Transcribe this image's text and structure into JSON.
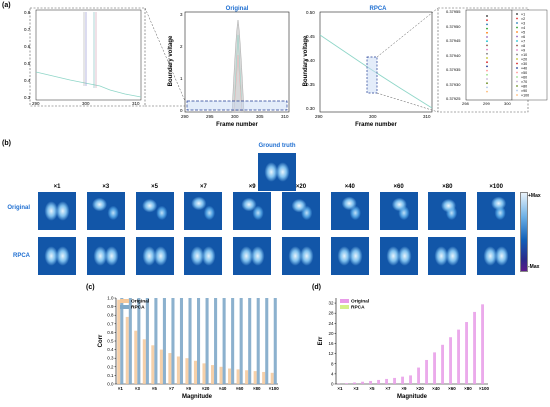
{
  "panels": {
    "a": {
      "label": "(a)"
    },
    "b": {
      "label": "(b)"
    },
    "c": {
      "label": "(c)"
    },
    "d": {
      "label": "(d)"
    }
  },
  "panel_a": {
    "inset_left": {
      "x_ticks": [
        "290",
        "300",
        "310"
      ],
      "y_ticks": [
        "0.8",
        "0.7",
        "0.6",
        "0.5",
        "0.4",
        "0.3"
      ]
    },
    "original": {
      "title": "Original",
      "xlabel": "Frame number",
      "ylabel": "Boundary voltage",
      "x_ticks": [
        "290",
        "295",
        "300",
        "305",
        "310"
      ],
      "y_ticks": [
        "0",
        "1",
        "2",
        "3"
      ]
    },
    "rpca": {
      "title": "RPCA",
      "xlabel": "Frame number",
      "ylabel": "Boundary voltage",
      "x_ticks": [
        "290",
        "300",
        "310"
      ],
      "y_ticks": [
        "0.50",
        "0.45",
        "0.40",
        "0.35",
        "0.30"
      ]
    },
    "zoom": {
      "x_ticks": [
        "298",
        "299",
        "300"
      ],
      "y_ticks": [
        "0.37955",
        "0.37950",
        "0.37945",
        "0.37940",
        "0.37935",
        "0.37930",
        "0.37925"
      ],
      "legend": [
        "×1",
        "×2",
        "×3",
        "×4",
        "×5",
        "×6",
        "×7",
        "×8",
        "×9",
        "×10",
        "×20",
        "×30",
        "×40",
        "×50",
        "×60",
        "×70",
        "×80",
        "×90",
        "×100"
      ],
      "legend_colors": [
        "#222222",
        "#e03030",
        "#1f77b4",
        "#2ca02c",
        "#ff7f0e",
        "#9467bd",
        "#17becf",
        "#8c564b",
        "#e377c2",
        "#7f7f7f",
        "#bcbd22",
        "#d62728",
        "#1f3a93",
        "#ff9896",
        "#98df8a",
        "#c5b0d5",
        "#6b8e23",
        "#aec7e8",
        "#ffbb78"
      ]
    }
  },
  "panel_b": {
    "ground_truth": "Ground truth",
    "row_original": "Original",
    "row_rpca": "RPCA",
    "magnitudes": [
      "×1",
      "×3",
      "×5",
      "×7",
      "×9",
      "×20",
      "×40",
      "×60",
      "×80",
      "×100"
    ],
    "colorbar_max": "+Max",
    "colorbar_min": "-Max"
  },
  "chart_data": [
    {
      "id": "c",
      "type": "bar",
      "categories": [
        "×1",
        "×2",
        "×3",
        "×4",
        "×5",
        "×6",
        "×7",
        "×8",
        "×9",
        "×10",
        "×20",
        "×30",
        "×40",
        "×50",
        "×60",
        "×70",
        "×80",
        "×90",
        "×100"
      ],
      "x_tick_labels": [
        "×1",
        "×3",
        "×5",
        "×7",
        "×9",
        "×20",
        "×40",
        "×60",
        "×80",
        "×100"
      ],
      "series": [
        {
          "name": "Original",
          "color": "#f5c89a",
          "values": [
            0.98,
            0.78,
            0.62,
            0.52,
            0.45,
            0.4,
            0.36,
            0.32,
            0.3,
            0.27,
            0.24,
            0.22,
            0.2,
            0.18,
            0.17,
            0.16,
            0.15,
            0.14,
            0.13
          ]
        },
        {
          "name": "RPCA",
          "color": "#7fa9c9",
          "values": [
            1,
            1,
            1,
            1,
            1,
            1,
            1,
            1,
            1,
            1,
            1,
            1,
            1,
            1,
            1,
            1,
            1,
            1,
            1
          ]
        }
      ],
      "xlabel": "Magnitude",
      "ylabel": "Corr",
      "ylim": [
        0,
        1.0
      ],
      "y_ticks": [
        "0.0",
        "0.1",
        "0.2",
        "0.3",
        "0.4",
        "0.5",
        "0.6",
        "0.7",
        "0.8",
        "0.9",
        "1.0"
      ],
      "legend_position": "top-left"
    },
    {
      "id": "d",
      "type": "bar",
      "categories": [
        "×1",
        "×2",
        "×3",
        "×4",
        "×5",
        "×6",
        "×7",
        "×8",
        "×9",
        "×10",
        "×20",
        "×30",
        "×40",
        "×50",
        "×60",
        "×70",
        "×80",
        "×90",
        "×100"
      ],
      "x_tick_labels": [
        "×1",
        "×3",
        "×5",
        "×7",
        "×9",
        "×20",
        "×40",
        "×60",
        "×80",
        "×100"
      ],
      "series": [
        {
          "name": "Original",
          "color": "#e89be8",
          "values": [
            0.1,
            0.3,
            0.6,
            0.9,
            1.2,
            1.6,
            2.0,
            2.4,
            2.9,
            3.4,
            6.5,
            9.5,
            12.5,
            15.5,
            18.5,
            21.5,
            24.5,
            28.5,
            31.5
          ]
        },
        {
          "name": "RPCA",
          "color": "#d4f08a",
          "values": [
            0,
            0,
            0,
            0,
            0,
            0,
            0,
            0,
            0,
            0,
            0,
            0,
            0,
            0,
            0,
            0,
            0,
            0,
            0
          ]
        }
      ],
      "xlabel": "Magnitude",
      "ylabel": "Err",
      "ylim": [
        0,
        34
      ],
      "y_ticks": [
        "0",
        "4",
        "8",
        "12",
        "16",
        "20",
        "24",
        "28",
        "32"
      ],
      "legend_position": "top-left"
    }
  ]
}
